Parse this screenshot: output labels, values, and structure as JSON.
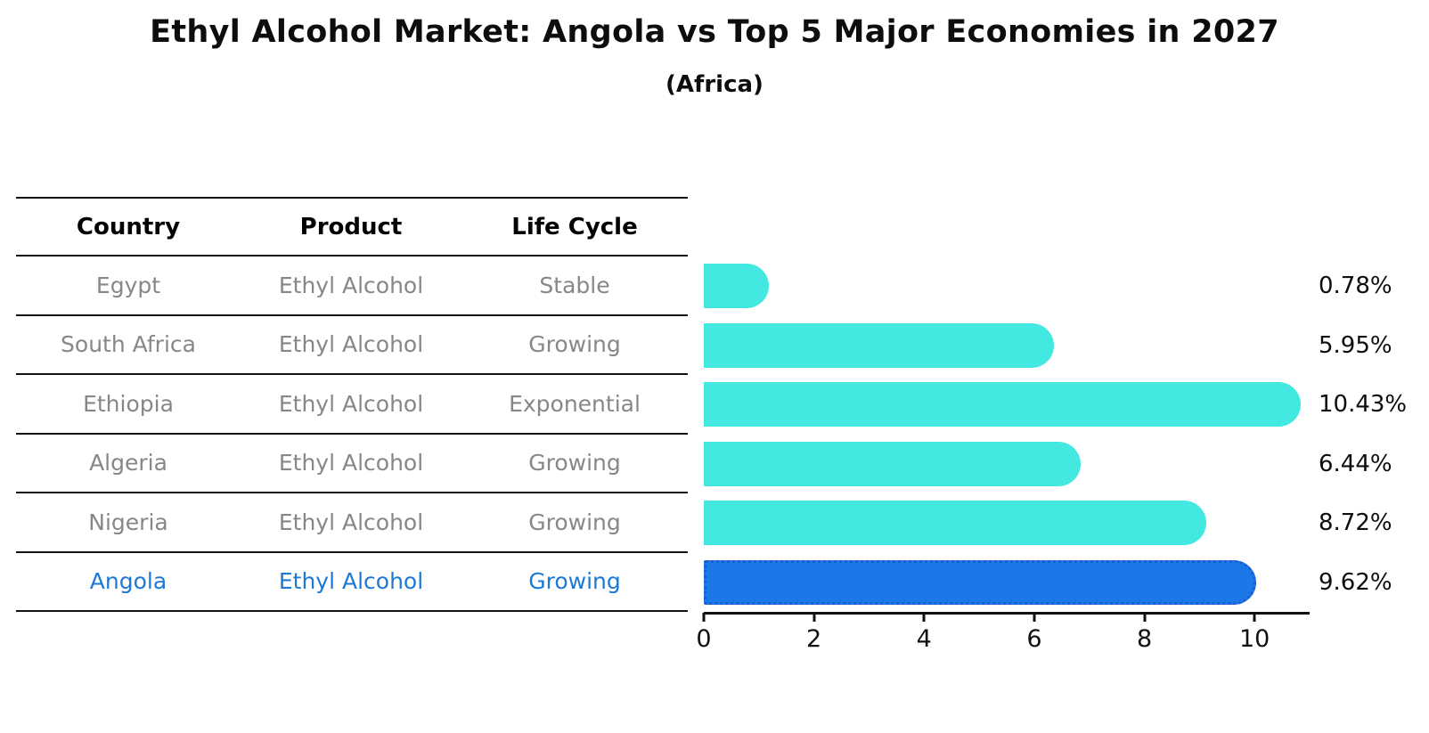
{
  "title": "Ethyl Alcohol Market: Angola vs Top 5 Major Economies in 2027",
  "subtitle": "(Africa)",
  "table": {
    "headers": [
      "Country",
      "Product",
      "Life Cycle"
    ],
    "rows": [
      {
        "country": "Egypt",
        "product": "Ethyl Alcohol",
        "life_cycle": "Stable",
        "highlight": false
      },
      {
        "country": "South Africa",
        "product": "Ethyl Alcohol",
        "life_cycle": "Growing",
        "highlight": false
      },
      {
        "country": "Ethiopia",
        "product": "Ethyl Alcohol",
        "life_cycle": "Exponential",
        "highlight": false
      },
      {
        "country": "Algeria",
        "product": "Ethyl Alcohol",
        "life_cycle": "Growing",
        "highlight": false
      },
      {
        "country": "Nigeria",
        "product": "Ethyl Alcohol",
        "life_cycle": "Growing",
        "highlight": false
      },
      {
        "country": "Angola",
        "product": "Ethyl Alcohol",
        "life_cycle": "Growing",
        "highlight": true
      }
    ]
  },
  "chart_data": {
    "type": "bar",
    "orientation": "horizontal",
    "title": "Ethyl Alcohol Market: Angola vs Top 5 Major Economies in 2027",
    "subtitle": "(Africa)",
    "categories": [
      "Egypt",
      "South Africa",
      "Ethiopia",
      "Algeria",
      "Nigeria",
      "Angola"
    ],
    "values": [
      0.78,
      5.95,
      10.43,
      6.44,
      8.72,
      9.62
    ],
    "value_labels": [
      "0.78%",
      "5.95%",
      "10.43%",
      "6.44%",
      "8.72%",
      "9.62%"
    ],
    "x_ticks": [
      0,
      2,
      4,
      6,
      8,
      10
    ],
    "xlim": [
      0,
      11
    ],
    "grid": false,
    "legend": "none",
    "bar_color": "#43e8e1",
    "highlight_color": "#1b78e8",
    "highlight_edge_color": "#1a5fd0",
    "highlight_index": 5,
    "highlight_text_color": "#1c79d6"
  }
}
